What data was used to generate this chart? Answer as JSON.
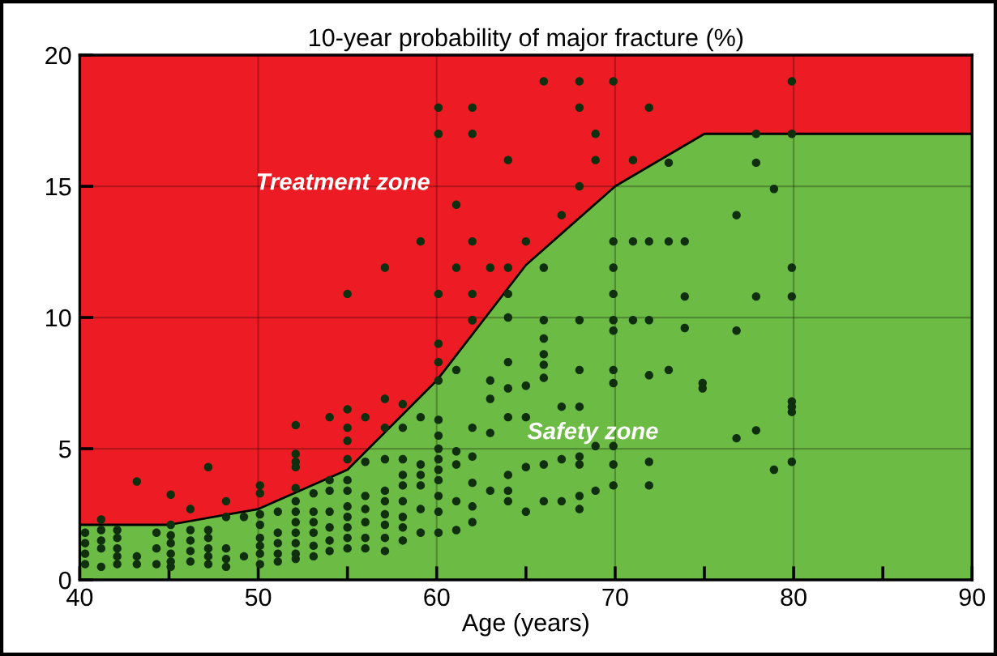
{
  "chart_data": {
    "type": "scatter",
    "title": "10-year probability of major fracture (%)",
    "xlabel": "Age (years)",
    "xlim": [
      40,
      90
    ],
    "xticks": [
      40,
      {
        "value": 45,
        "label": null
      },
      50,
      {
        "value": 55,
        "label": null
      },
      60,
      {
        "value": 65,
        "label": null
      },
      70,
      {
        "value": 75,
        "label": null
      },
      80,
      {
        "value": 85,
        "label": null
      },
      90
    ],
    "ylim": [
      0,
      20
    ],
    "yticks": [
      0,
      5,
      10,
      15,
      20
    ],
    "grid": true,
    "legend": false,
    "annotations": [
      "Treatment zone",
      "Safety zone"
    ],
    "series": [
      {
        "type": "area",
        "color": "#ed1c24",
        "x": [
          40,
          45,
          50,
          55,
          60,
          65,
          70,
          75,
          90
        ],
        "values": [
          20,
          20,
          20,
          20,
          20,
          20,
          20,
          20,
          20
        ]
      },
      {
        "type": "area",
        "color": "#6cbb45",
        "x": [
          40,
          45,
          50,
          55,
          60,
          65,
          70,
          75,
          90
        ],
        "values": [
          2.1,
          2.1,
          2.7,
          4.2,
          7.6,
          12,
          15,
          17,
          17
        ]
      },
      {
        "color": "#0f2f0f",
        "x": [
          43.2,
          45.1,
          46.2,
          47.2,
          48.2,
          50.1,
          50.1,
          52.1,
          52.1,
          52.1,
          52.1,
          54,
          41.2,
          40.3,
          40.3,
          40.3,
          40.3,
          41.2,
          41.2,
          41.2,
          41.2,
          42.1,
          42.1,
          42.1,
          42.1,
          42.1,
          43.2,
          43.2,
          44.3,
          44.3,
          44.3,
          45.1,
          45.1,
          45.1,
          45.1,
          45.1,
          45.1,
          46.2,
          46.2,
          46.2,
          46.2,
          47.2,
          47.2,
          47.2,
          47.2,
          47.2,
          48.2,
          48.2,
          48.2,
          48.2,
          49.2,
          49.2,
          50.1,
          50.1,
          50.1,
          50.1,
          50.1,
          50.1,
          51.1,
          51.1,
          51.1,
          51.1,
          51.1,
          52.1,
          52.1,
          52.1,
          52.1,
          52.1,
          52.1,
          52.1,
          52.1,
          53.1,
          53.1,
          53.1,
          53.1,
          53.1,
          53.1,
          54,
          54,
          54,
          54,
          54,
          54,
          66,
          68,
          69.9,
          60.1,
          62,
          68,
          71.9,
          60.1,
          62,
          68.9,
          64,
          68.9,
          71,
          68,
          61.1,
          67,
          59.1,
          62,
          65,
          57.1,
          61.1,
          63,
          64,
          55,
          60.1,
          62,
          62,
          60.1,
          60.1,
          57.1,
          58.1,
          56,
          55,
          55,
          55,
          55,
          55,
          55,
          55,
          55,
          55,
          55,
          55,
          56,
          56,
          56,
          56,
          56,
          56,
          57.1,
          57.1,
          57.1,
          57.1,
          57.1,
          57.1,
          57.1,
          57.1,
          58.1,
          58.1,
          58.1,
          58.1,
          58.1,
          58.1,
          58.1,
          58.1,
          59.1,
          59.1,
          59.1,
          59.1,
          59.1,
          59.1,
          60.1,
          60.1,
          60.1,
          60.1,
          60.1,
          60.1,
          60.1,
          60.1,
          60.1,
          60.1,
          61.1,
          61.1,
          61.1,
          61.1,
          61.1,
          62,
          62,
          62,
          62,
          62,
          62,
          63,
          63,
          63,
          63,
          64,
          64,
          64,
          64,
          64,
          64,
          64,
          64,
          65,
          65,
          65,
          65,
          66,
          66,
          66,
          66,
          66,
          66,
          66,
          66,
          67,
          67,
          67,
          68,
          68,
          68,
          68,
          68,
          68,
          68,
          68.9,
          68.9,
          69.9,
          69.9,
          69.9,
          69.9,
          69.9,
          69.9,
          69.9,
          69.9,
          69.9,
          69.9,
          71,
          71,
          71.9,
          71.9,
          71.9,
          71.9,
          79.9,
          73,
          77.9,
          79.9,
          77.9,
          78.9,
          76.8,
          73,
          73.9,
          79.9,
          73.9,
          77.9,
          79.9,
          73.9,
          76.8,
          73,
          74.9,
          74.9,
          79.9,
          79.9,
          79.9,
          76.8,
          77.9,
          71.9,
          78.9,
          79.9
        ],
        "values": [
          3.75,
          3.25,
          2.7,
          4.3,
          3.0,
          3.6,
          3.3,
          5.9,
          4.8,
          4.5,
          4.3,
          6.2,
          2.3,
          1.8,
          1.4,
          1.0,
          0.6,
          1.9,
          1.5,
          1.2,
          0.5,
          1.9,
          1.6,
          1.2,
          0.9,
          0.6,
          0.9,
          0.6,
          1.8,
          1.2,
          0.6,
          2.1,
          1.7,
          1.4,
          1.0,
          0.7,
          0.5,
          1.9,
          1.5,
          1.1,
          0.7,
          1.9,
          1.6,
          1.2,
          0.9,
          0.6,
          2.4,
          1.2,
          0.8,
          0.5,
          2.4,
          0.9,
          2.5,
          2.1,
          1.6,
          1.3,
          1.0,
          0.6,
          2.6,
          1.8,
          1.4,
          1.0,
          0.7,
          3.5,
          3.0,
          2.6,
          2.2,
          1.8,
          1.4,
          1.0,
          0.8,
          3.3,
          2.6,
          2.2,
          1.8,
          1.3,
          0.9,
          3.8,
          3.4,
          2.6,
          2.0,
          1.5,
          1.1,
          19,
          19,
          19,
          18,
          18,
          18,
          18,
          17,
          17,
          17,
          16,
          16,
          16,
          15,
          14.3,
          13.9,
          12.9,
          12.9,
          12.9,
          11.9,
          11.9,
          11.9,
          11.9,
          10.9,
          10.9,
          10.9,
          9.9,
          9.0,
          8.3,
          6.9,
          6.7,
          6.2,
          6.5,
          5.8,
          5.3,
          4.6,
          3.8,
          3.4,
          2.8,
          2.4,
          2.0,
          1.6,
          1.2,
          4.5,
          3.2,
          2.7,
          2.2,
          1.6,
          1.2,
          5.8,
          4.6,
          3.4,
          3.0,
          2.5,
          2.1,
          1.6,
          1.1,
          5.8,
          4.6,
          4.0,
          3.6,
          3.0,
          2.4,
          2.0,
          1.5,
          6.2,
          4.4,
          4.0,
          3.6,
          2.7,
          1.8,
          7.6,
          6.1,
          5.5,
          5.0,
          4.6,
          4.2,
          3.8,
          3.2,
          2.6,
          1.8,
          8.0,
          4.9,
          4.4,
          3.0,
          1.9,
          9.9,
          5.8,
          4.7,
          3.7,
          2.8,
          2.2,
          7.6,
          6.9,
          5.6,
          3.4,
          10.9,
          10.0,
          8.3,
          7.3,
          6.2,
          4.0,
          3.4,
          3.0,
          7.4,
          6.2,
          4.3,
          2.6,
          11.9,
          9.9,
          9.2,
          8.6,
          8.2,
          7.7,
          4.4,
          3.0,
          6.6,
          4.6,
          3.0,
          9.9,
          8.0,
          6.6,
          4.7,
          4.4,
          3.2,
          2.7,
          5.1,
          3.4,
          12.9,
          11.9,
          10.9,
          9.9,
          9.5,
          8.0,
          7.5,
          5.1,
          4.4,
          3.6,
          12.9,
          9.9,
          12.9,
          9.9,
          7.8,
          3.6,
          19,
          15.9,
          17,
          17,
          15.9,
          14.9,
          13.9,
          12.9,
          12.9,
          11.9,
          10.8,
          10.8,
          10.8,
          9.6,
          9.5,
          8.0,
          7.5,
          7.3,
          6.8,
          6.6,
          6.4,
          5.4,
          5.7,
          4.5,
          4.2,
          4.5
        ]
      }
    ]
  }
}
